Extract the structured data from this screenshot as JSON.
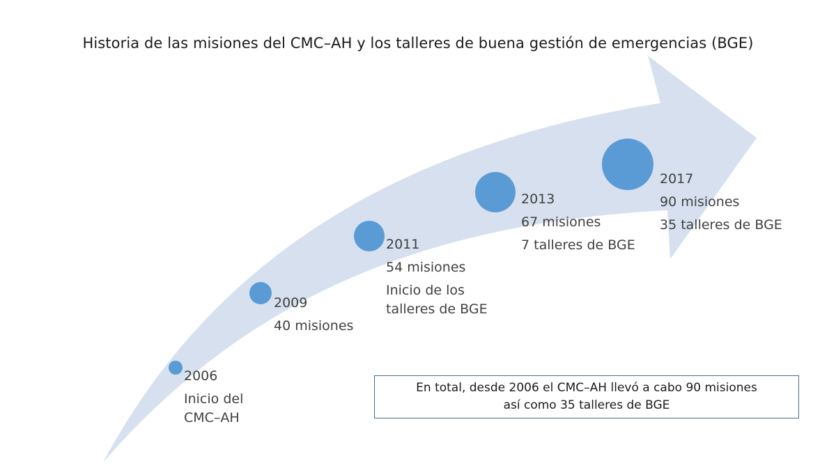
{
  "title": "Historia de las misiones del CMC–AH y los talleres de buena gestión de emergencias (BGE)",
  "milestones": [
    {
      "year": "2006",
      "lines": [
        "Inicio del",
        "CMC–AH"
      ]
    },
    {
      "year": "2009",
      "lines": [
        "40 misiones"
      ]
    },
    {
      "year": "2011",
      "lines": [
        "54 misiones",
        "Inicio de los",
        "talleres de BGE"
      ]
    },
    {
      "year": "2013",
      "lines": [
        "67 misiones",
        "7 talleres de BGE"
      ]
    },
    {
      "year": "2017",
      "lines": [
        "90 misiones",
        "35 talleres de BGE"
      ]
    }
  ],
  "summary": {
    "line1": "En total, desde 2006 el CMC–AH llevó a cabo 90 misiones",
    "line2": "así como 35 talleres de BGE"
  },
  "colors": {
    "arrow": "#d6e0ef",
    "dot": "#5b9bd5",
    "text": "#404040",
    "title": "#1a1a1a",
    "box_border": "#4a6a8a"
  }
}
